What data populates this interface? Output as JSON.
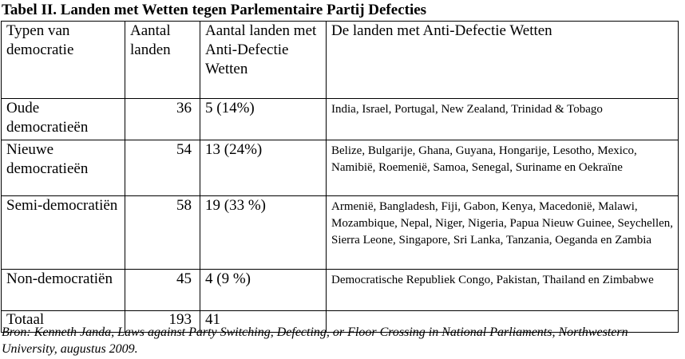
{
  "title": "Tabel II. Landen met Wetten tegen Parlementaire Partij Defecties",
  "table": {
    "headers": [
      "Typen van democratie",
      "Aantal landen",
      "Aantal landen met Anti-Defectie Wetten",
      "De landen met Anti-Defectie Wetten"
    ],
    "rows": [
      {
        "type": "Oude democratieën",
        "count": "36",
        "with_laws": "5 (14%)",
        "countries": "India, Israel, Portugal, New Zealand, Trinidad & Tobago"
      },
      {
        "type": "Nieuwe democratieën",
        "count": "54",
        "with_laws": "13 (24%)",
        "countries": "Belize, Bulgarije, Ghana, Guyana, Hongarije, Lesotho, Mexico, Namibië, Roemenië, Samoa, Senegal, Suriname en Oekraïne"
      },
      {
        "type": "Semi-democratiën",
        "count": "58",
        "with_laws": "19 (33 %)",
        "countries": "Armenië, Bangladesh, Fiji, Gabon, Kenya, Macedonië, Malawi, Mozambique, Nepal, Niger, Nigeria, Papua Nieuw Guinee, Seychellen, Sierra Leone, Singapore, Sri Lanka, Tanzania, Oeganda en Zambia"
      },
      {
        "type": "Non-democratiën",
        "count": "45",
        "with_laws": "4 (9 %)",
        "countries": "Democratische Republiek Congo, Pakistan, Thailand en Zimbabwe"
      }
    ],
    "total": {
      "label": "Totaal",
      "count": "193",
      "with_laws": "41",
      "countries": ""
    }
  },
  "source": "Bron: Kenneth Janda, Laws against Party Switching, Defecting, or Floor Crossing in National Parliaments, Northwestern University, augustus 2009."
}
